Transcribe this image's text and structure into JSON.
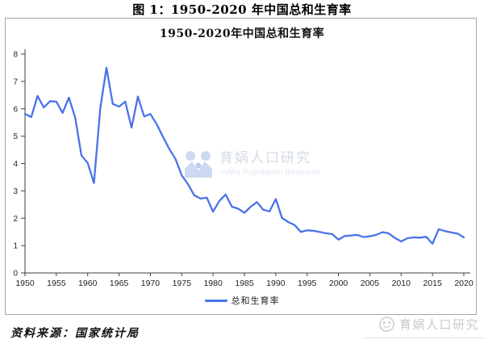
{
  "figure_title": "图 1：1950-2020 年中国总和生育率",
  "source_note": "资料来源：国家统计局",
  "watermark": {
    "name": "育娲人口研究",
    "name_en": "YuWa Population Research",
    "footer_brand": "育娲人口研究"
  },
  "colors": {
    "line": "#4a73e8",
    "axis": "#3f3f3f",
    "tick_label": "#1f1f1f",
    "box_border": "#a6a6a6",
    "watermark_blue": "#cdd9f2",
    "watermark_gray": "#c9c9c9"
  },
  "chart_data": {
    "type": "line",
    "title": "1950-2020年中国总和生育率",
    "xlabel": "",
    "ylabel": "",
    "ylim": [
      0,
      8
    ],
    "y_ticks": [
      0,
      1,
      2,
      3,
      4,
      5,
      6,
      7,
      8
    ],
    "x_ticks": [
      1950,
      1955,
      1960,
      1965,
      1970,
      1975,
      1980,
      1985,
      1990,
      1995,
      2000,
      2005,
      2010,
      2015,
      2020
    ],
    "grid": false,
    "legend_position": "bottom",
    "x": [
      1950,
      1951,
      1952,
      1953,
      1954,
      1955,
      1956,
      1957,
      1958,
      1959,
      1960,
      1961,
      1962,
      1963,
      1964,
      1965,
      1966,
      1967,
      1968,
      1969,
      1970,
      1971,
      1972,
      1973,
      1974,
      1975,
      1976,
      1977,
      1978,
      1979,
      1980,
      1981,
      1982,
      1983,
      1984,
      1985,
      1986,
      1987,
      1988,
      1989,
      1990,
      1991,
      1992,
      1993,
      1994,
      1995,
      1996,
      1997,
      1998,
      1999,
      2000,
      2001,
      2002,
      2003,
      2004,
      2005,
      2006,
      2007,
      2008,
      2009,
      2010,
      2011,
      2012,
      2013,
      2014,
      2015,
      2016,
      2017,
      2018,
      2019,
      2020
    ],
    "series": [
      {
        "name": "总和生育率",
        "color": "#4a73e8",
        "values": [
          5.81,
          5.7,
          6.47,
          6.05,
          6.28,
          6.26,
          5.85,
          6.41,
          5.68,
          4.3,
          4.02,
          3.29,
          6.02,
          7.5,
          6.18,
          6.08,
          6.26,
          5.31,
          6.45,
          5.72,
          5.81,
          5.44,
          4.98,
          4.54,
          4.17,
          3.57,
          3.24,
          2.84,
          2.72,
          2.75,
          2.24,
          2.63,
          2.87,
          2.42,
          2.35,
          2.2,
          2.42,
          2.59,
          2.31,
          2.25,
          2.7,
          2.01,
          1.86,
          1.75,
          1.5,
          1.56,
          1.54,
          1.5,
          1.45,
          1.42,
          1.22,
          1.35,
          1.37,
          1.39,
          1.31,
          1.34,
          1.39,
          1.49,
          1.45,
          1.28,
          1.15,
          1.27,
          1.3,
          1.29,
          1.32,
          1.07,
          1.6,
          1.53,
          1.48,
          1.44,
          1.3
        ]
      }
    ]
  }
}
